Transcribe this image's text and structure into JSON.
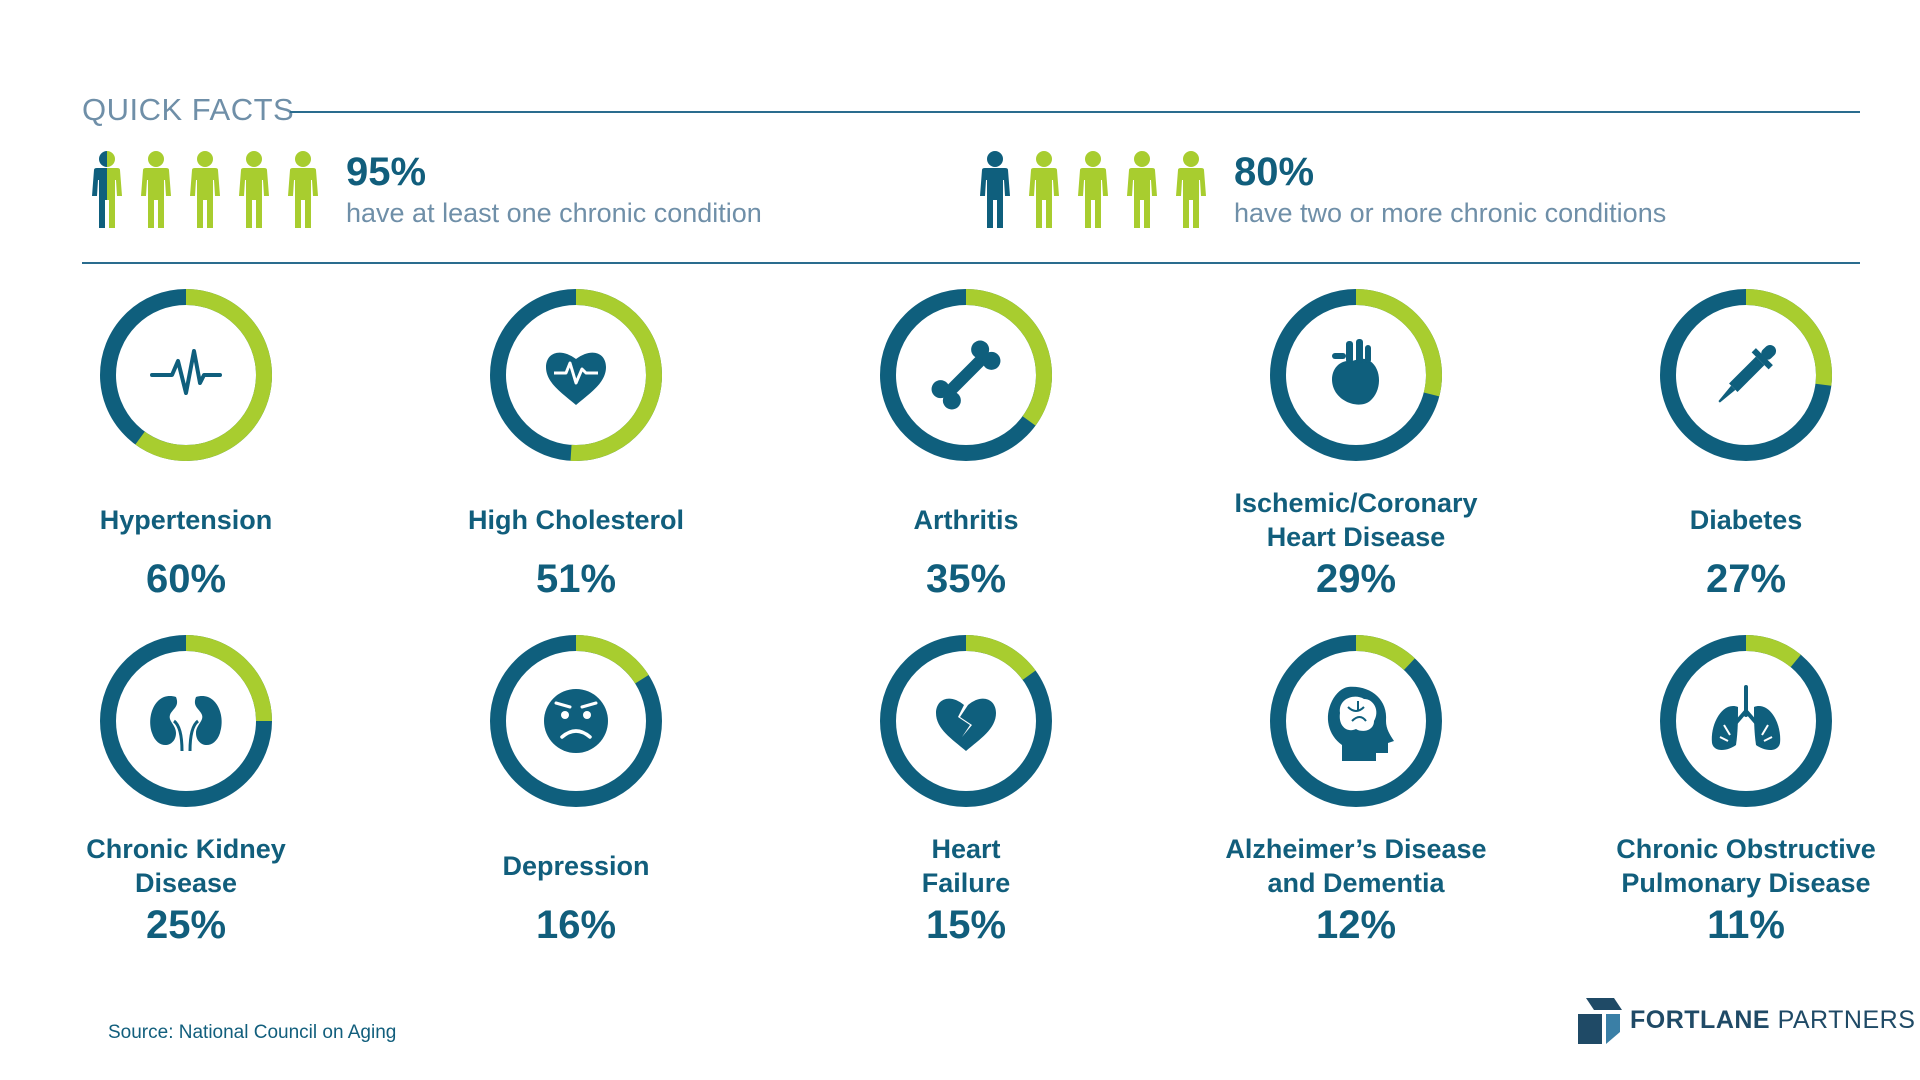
{
  "header": {
    "title": "QUICK FACTS"
  },
  "facts": [
    {
      "pct": "95%",
      "text": "have at least one chronic condition",
      "people": [
        "half",
        "full",
        "full",
        "full",
        "full"
      ]
    },
    {
      "pct": "80%",
      "text": "have two or more chronic conditions",
      "people": [
        "dark",
        "full",
        "full",
        "full",
        "full"
      ]
    }
  ],
  "colors": {
    "dark": "#0f5f7d",
    "accent": "#a8cd2f",
    "text": "#115e7c",
    "muted": "#6f8fa8"
  },
  "chart_data": {
    "type": "pie",
    "categories": [
      "Hypertension",
      "High Cholesterol",
      "Arthritis",
      "Ischemic/Coronary\nHeart Disease",
      "Diabetes",
      "Chronic Kidney\nDisease",
      "Depression",
      "Heart\nFailure",
      "Alzheimer’s Disease\nand Dementia",
      "Chronic Obstructive\nPulmonary Disease"
    ],
    "values": [
      60,
      51,
      35,
      29,
      27,
      25,
      16,
      15,
      12,
      11
    ],
    "value_labels": [
      "60%",
      "51%",
      "35%",
      "29%",
      "27%",
      "25%",
      "16%",
      "15%",
      "12%",
      "11%"
    ],
    "icons": [
      "pulse-icon",
      "heart-pulse-icon",
      "bone-icon",
      "anatomical-heart-icon",
      "dropper-icon",
      "kidneys-icon",
      "sad-face-icon",
      "broken-heart-icon",
      "brain-head-icon",
      "lungs-icon"
    ]
  },
  "footer": {
    "source": "Source: National Council on Aging",
    "logo_bold": "FORTLANE",
    "logo_light": "PARTNERS"
  }
}
